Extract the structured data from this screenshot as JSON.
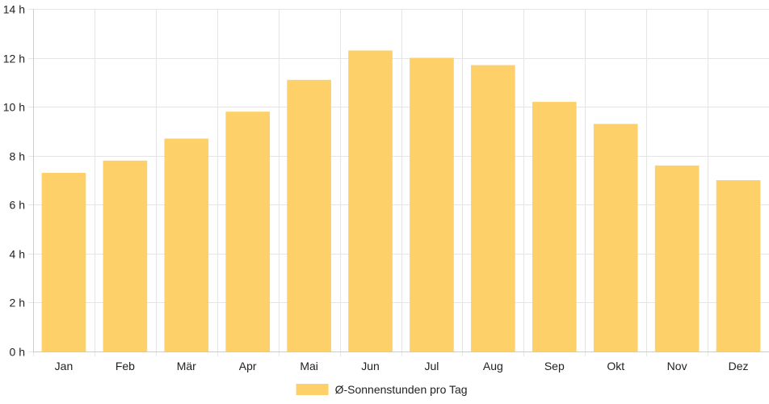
{
  "chart_data": {
    "type": "bar",
    "categories": [
      "Jan",
      "Feb",
      "Mär",
      "Apr",
      "Mai",
      "Jun",
      "Jul",
      "Aug",
      "Sep",
      "Okt",
      "Nov",
      "Dez"
    ],
    "series": [
      {
        "name": "Ø-Sonnenstunden pro Tag",
        "values": [
          7.3,
          7.8,
          8.7,
          9.8,
          11.1,
          12.3,
          12.0,
          11.7,
          10.2,
          9.3,
          7.6,
          7.0
        ],
        "color": "#fdd069"
      }
    ],
    "ylim": [
      0,
      14
    ],
    "yticks": [
      0,
      2,
      4,
      6,
      8,
      10,
      12,
      14
    ],
    "ytick_suffix": " h",
    "grid": true,
    "legend_position": "bottom",
    "grid_color": "#e5e5e5",
    "axis_color": "#cccccc"
  }
}
